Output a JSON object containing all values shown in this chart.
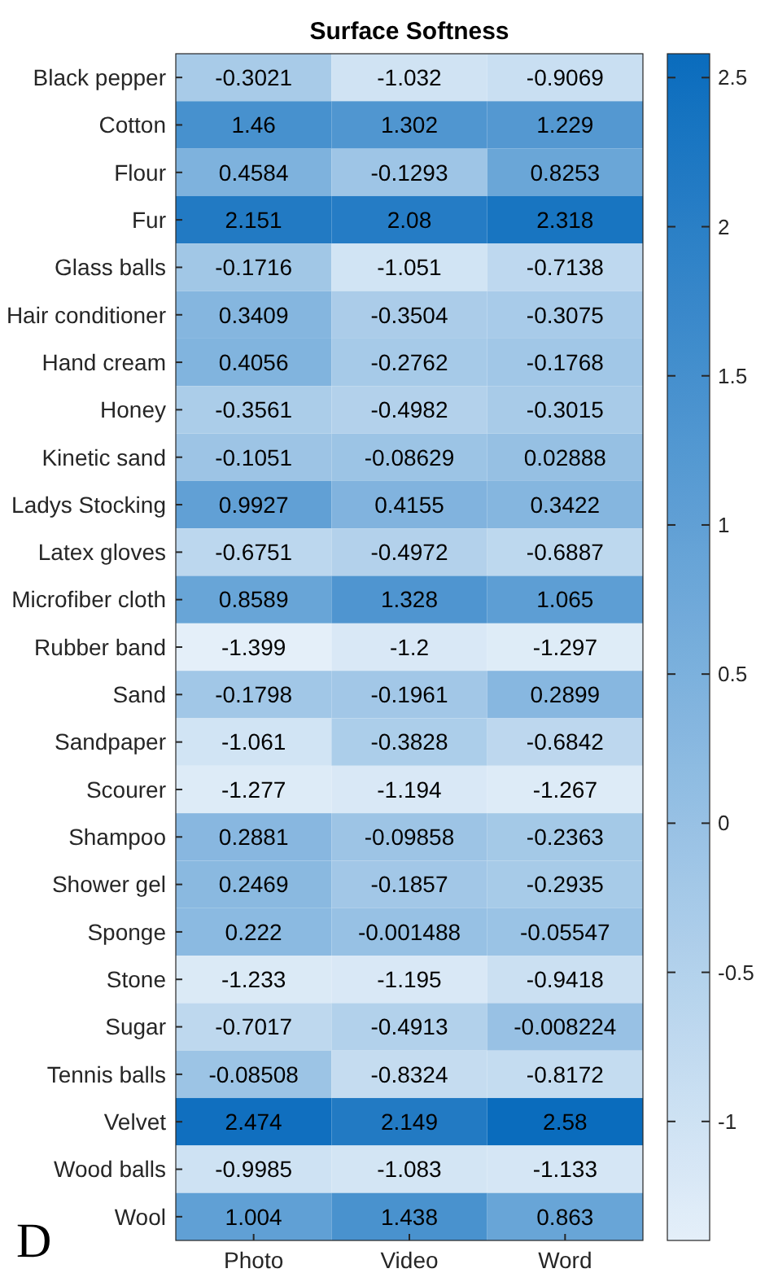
{
  "chart_data": {
    "type": "heatmap",
    "title": "Surface Softness",
    "categories": [
      "Photo",
      "Video",
      "Word"
    ],
    "y_categories": [
      "Black pepper",
      "Cotton",
      "Flour",
      "Fur",
      "Glass balls",
      "Hair conditioner",
      "Hand cream",
      "Honey",
      "Kinetic sand",
      "Ladys Stocking",
      "Latex gloves",
      "Microfiber cloth",
      "Rubber band",
      "Sand",
      "Sandpaper",
      "Scourer",
      "Shampoo",
      "Shower gel",
      "Sponge",
      "Stone",
      "Sugar",
      "Tennis balls",
      "Velvet",
      "Wood balls",
      "Wool"
    ],
    "cells": [
      [
        -0.3021,
        -1.032,
        -0.9069
      ],
      [
        1.46,
        1.302,
        1.229
      ],
      [
        0.4584,
        -0.1293,
        0.8253
      ],
      [
        2.151,
        2.08,
        2.318
      ],
      [
        -0.1716,
        -1.051,
        -0.7138
      ],
      [
        0.3409,
        -0.3504,
        -0.3075
      ],
      [
        0.4056,
        -0.2762,
        -0.1768
      ],
      [
        -0.3561,
        -0.4982,
        -0.3015
      ],
      [
        -0.1051,
        -0.08629,
        0.02888
      ],
      [
        0.9927,
        0.4155,
        0.3422
      ],
      [
        -0.6751,
        -0.4972,
        -0.6887
      ],
      [
        0.8589,
        1.328,
        1.065
      ],
      [
        -1.399,
        -1.2,
        -1.297
      ],
      [
        -0.1798,
        -0.1961,
        0.2899
      ],
      [
        -1.061,
        -0.3828,
        -0.6842
      ],
      [
        -1.277,
        -1.194,
        -1.267
      ],
      [
        0.2881,
        -0.09858,
        -0.2363
      ],
      [
        0.2469,
        -0.1857,
        -0.2935
      ],
      [
        0.222,
        -0.001488,
        -0.05547
      ],
      [
        -1.233,
        -1.195,
        -0.9418
      ],
      [
        -0.7017,
        -0.4913,
        -0.008224
      ],
      [
        -0.08508,
        -0.8324,
        -0.8172
      ],
      [
        2.474,
        2.149,
        2.58
      ],
      [
        -0.9985,
        -1.083,
        -1.133
      ],
      [
        1.004,
        1.438,
        0.863
      ]
    ],
    "data_labels": true,
    "clim": [
      -1.399,
      2.58
    ],
    "cticks": [
      {
        "value": -1,
        "label": "-1"
      },
      {
        "value": -0.5,
        "label": "-0.5"
      },
      0,
      0.5,
      1,
      1.5,
      2,
      2.5
    ],
    "annotations": [
      "D"
    ]
  }
}
